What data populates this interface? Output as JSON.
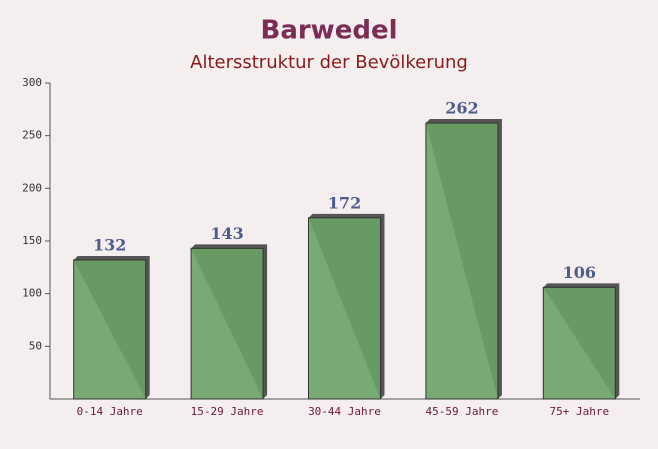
{
  "chart_data": {
    "type": "bar",
    "title": "Barwedel",
    "subtitle": "Altersstruktur der Bevölkerung",
    "categories": [
      "0-14 Jahre",
      "15-29 Jahre",
      "30-44 Jahre",
      "45-59 Jahre",
      "75+ Jahre"
    ],
    "values": [
      132,
      143,
      172,
      262,
      106
    ],
    "color": "#6aa266",
    "ylim": [
      0,
      300
    ],
    "yticks": [
      50,
      100,
      150,
      200,
      250,
      300
    ]
  }
}
